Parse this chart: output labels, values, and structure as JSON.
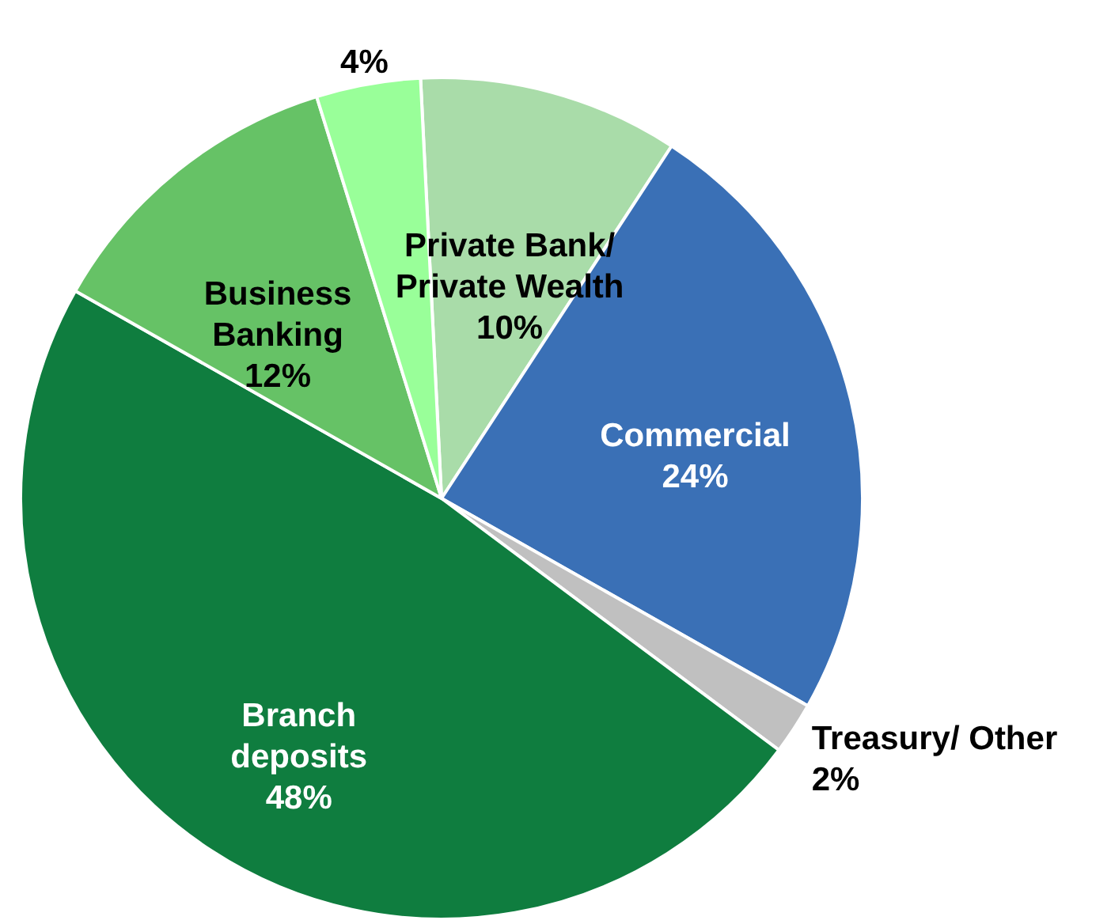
{
  "chart_data": {
    "type": "pie",
    "categories": [
      "Private Bank/ Private Wealth",
      "Commercial",
      "Treasury/ Other",
      "Branch deposits",
      "Business Banking",
      null
    ],
    "values": [
      10,
      24,
      2,
      48,
      12,
      4
    ],
    "value_labels": [
      "10%",
      "24%",
      "2%",
      "48%",
      "12%",
      "4%"
    ],
    "colors": [
      "#a9dca9",
      "#3a70b6",
      "#c0c0c0",
      "#0f7d3f",
      "#66c266",
      "#99ff99"
    ]
  }
}
